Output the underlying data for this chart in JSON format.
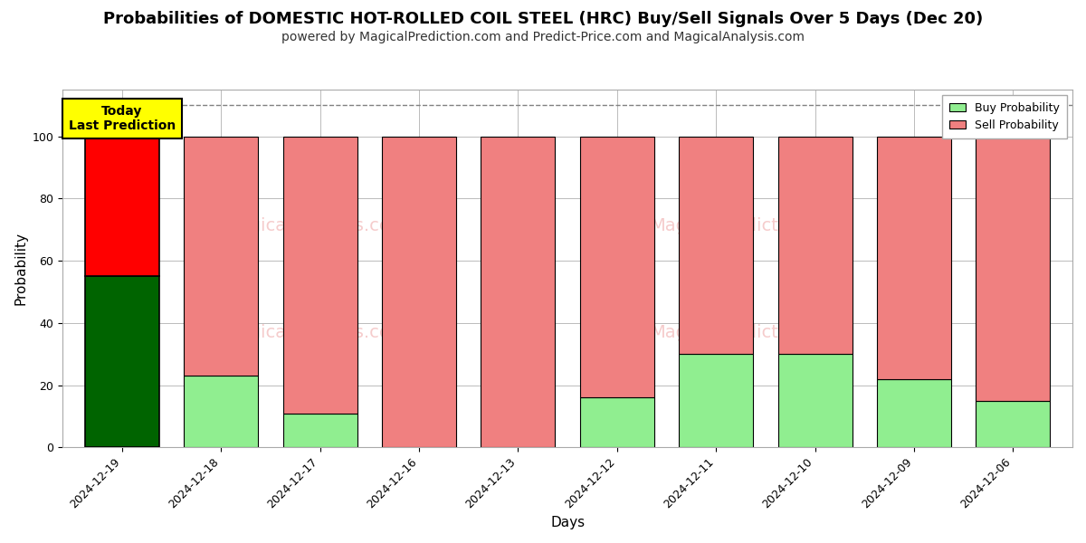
{
  "title": "Probabilities of DOMESTIC HOT-ROLLED COIL STEEL (HRC) Buy/Sell Signals Over 5 Days (Dec 20)",
  "subtitle": "powered by MagicalPrediction.com and Predict-Price.com and MagicalAnalysis.com",
  "xlabel": "Days",
  "ylabel": "Probability",
  "categories": [
    "2024-12-19",
    "2024-12-18",
    "2024-12-17",
    "2024-12-16",
    "2024-12-13",
    "2024-12-12",
    "2024-12-11",
    "2024-12-10",
    "2024-12-09",
    "2024-12-06"
  ],
  "buy_values": [
    55,
    23,
    11,
    0,
    0,
    16,
    30,
    30,
    22,
    15
  ],
  "sell_values": [
    45,
    77,
    89,
    100,
    100,
    84,
    70,
    70,
    78,
    85
  ],
  "today_index": 0,
  "today_buy_color": "#006400",
  "today_sell_color": "#FF0000",
  "buy_color": "#90EE90",
  "sell_color": "#F08080",
  "bar_edge_color": "#000000",
  "today_label_bg": "#FFFF00",
  "today_label_text": "Today\nLast Prediction",
  "legend_buy_label": "Buy Probability",
  "legend_sell_label": "Sell Probability",
  "ylim": [
    0,
    115
  ],
  "dashed_line_y": 110,
  "background_color": "#ffffff",
  "grid_color": "#bbbbbb",
  "title_fontsize": 13,
  "subtitle_fontsize": 10,
  "axis_label_fontsize": 11,
  "tick_fontsize": 9,
  "bar_width": 0.75
}
